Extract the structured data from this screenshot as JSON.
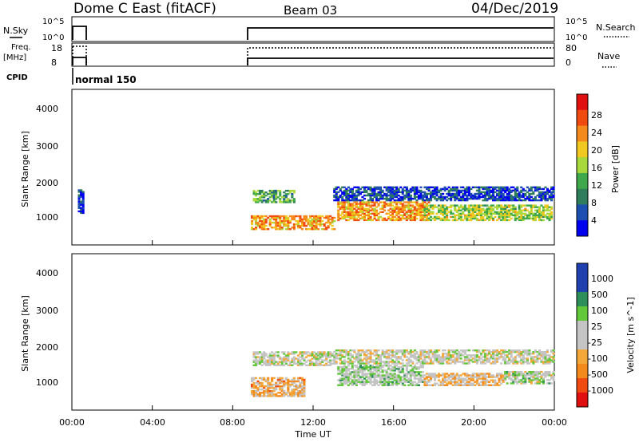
{
  "header": {
    "title": "Dome C East (fitACF)",
    "beam": "Beam 03",
    "date": "04/Dec/2019"
  },
  "top_panels": {
    "nsky_label": "N.Sky",
    "nsearch_label": "N.Search",
    "nsky_ticks": [
      "10^5",
      "10^0"
    ],
    "nsearch_ticks": [
      "10^5",
      "10^0"
    ],
    "freq_label": "Freq.",
    "freq_unit": "[MHz]",
    "freq_ticks": [
      "18",
      "8"
    ],
    "nave_label": "Nave",
    "nave_ticks": [
      "80",
      "0"
    ],
    "cpid_label": "CPID",
    "cpid_value": "normal 150"
  },
  "x_axis": {
    "label": "Time UT",
    "ticks": [
      "00:00",
      "04:00",
      "08:00",
      "12:00",
      "16:00",
      "20:00",
      "00:00"
    ],
    "range_hours": [
      0,
      24
    ]
  },
  "colors": {
    "power_scale": [
      "#0000f0",
      "#1c4fb0",
      "#2f7d5b",
      "#3fa84b",
      "#a8d83c",
      "#f0c820",
      "#f58a1c",
      "#f04a10",
      "#e01010"
    ],
    "velocity_scale": [
      "#e01010",
      "#f04a10",
      "#f58a1c",
      "#f5a83a",
      "#c4c4c4",
      "#c4c4c4",
      "#62c83a",
      "#2f8f5b",
      "#2040b0",
      "#2040b0"
    ]
  },
  "chart_data": [
    {
      "type": "heatmap",
      "name": "power",
      "ylabel": "Slant Range [km]",
      "yticks": [
        "4000",
        "3000",
        "2000",
        "1000"
      ],
      "ylim": [
        180,
        4500
      ],
      "colorbar": {
        "label": "Power [dB]",
        "ticks": [
          "28",
          "24",
          "20",
          "16",
          "12",
          "8",
          "4"
        ],
        "range": [
          0,
          32
        ]
      },
      "echo_regions": [
        {
          "t": [
            0.3,
            0.6
          ],
          "r": [
            1050,
            1700
          ],
          "value": 4
        },
        {
          "t": [
            8.9,
            13.0
          ],
          "r": [
            600,
            1000
          ],
          "value": 22
        },
        {
          "t": [
            9.0,
            11.0
          ],
          "r": [
            1350,
            1700
          ],
          "value": 12
        },
        {
          "t": [
            13.2,
            17.8
          ],
          "r": [
            850,
            1350
          ],
          "value": 22
        },
        {
          "t": [
            17.5,
            23.9
          ],
          "r": [
            850,
            1300
          ],
          "value": 16
        },
        {
          "t": [
            13.0,
            24.0
          ],
          "r": [
            1400,
            1800
          ],
          "value": 5
        }
      ]
    },
    {
      "type": "heatmap",
      "name": "velocity",
      "ylabel": "Slant Range [km]",
      "yticks": [
        "4000",
        "3000",
        "2000",
        "1000"
      ],
      "ylim": [
        180,
        4500
      ],
      "colorbar": {
        "label": "Velocity [m s^-1]",
        "ticks": [
          "1000",
          "500",
          "100",
          "25",
          "-25",
          "-100",
          "-500",
          "-1000"
        ],
        "range": [
          -1000,
          1000
        ]
      },
      "echo_regions": [
        {
          "t": [
            8.9,
            11.5
          ],
          "r": [
            550,
            1050
          ],
          "value": -300
        },
        {
          "t": [
            9.0,
            13.0
          ],
          "r": [
            1400,
            1800
          ],
          "value": 0
        },
        {
          "t": [
            13.2,
            17.5
          ],
          "r": [
            850,
            1400
          ],
          "value": 150
        },
        {
          "t": [
            17.5,
            21.5
          ],
          "r": [
            850,
            1200
          ],
          "value": -200
        },
        {
          "t": [
            21.5,
            24.0
          ],
          "r": [
            900,
            1250
          ],
          "value": 80
        },
        {
          "t": [
            13.0,
            24.0
          ],
          "r": [
            1450,
            1850
          ],
          "value": 0
        }
      ]
    }
  ]
}
